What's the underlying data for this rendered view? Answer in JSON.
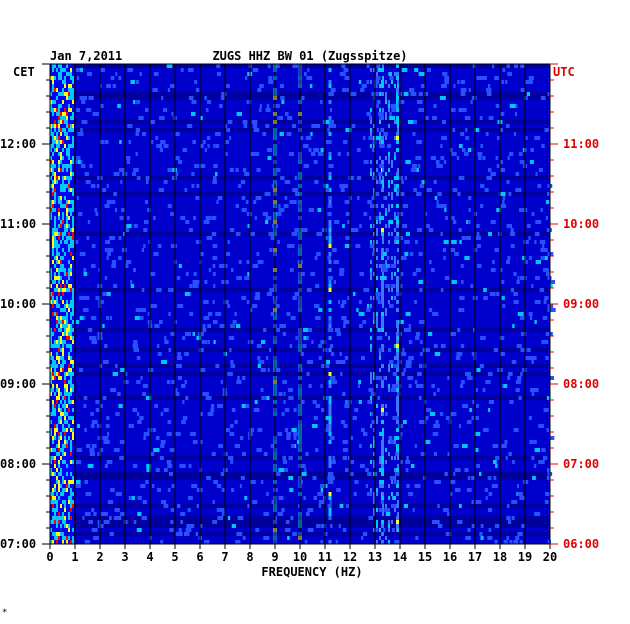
{
  "chart_data": {
    "type": "heatmap",
    "date": "Jan 7,2011",
    "title": "ZUGS HHZ BW 01 (Zugsspitze)",
    "xlabel": "FREQUENCY (HZ)",
    "x_range": [
      0,
      20
    ],
    "x_ticks": [
      "0",
      "1",
      "2",
      "3",
      "4",
      "5",
      "6",
      "7",
      "8",
      "9",
      "10",
      "11",
      "12",
      "13",
      "14",
      "15",
      "16",
      "17",
      "18",
      "19",
      "20"
    ],
    "left_axis_label": "CET",
    "right_axis_label": "UTC",
    "left_ticks": [
      "07:00",
      "08:00",
      "09:00",
      "10:00",
      "11:00",
      "12:00"
    ],
    "right_ticks": [
      "06:00",
      "07:00",
      "08:00",
      "09:00",
      "10:00",
      "11:00"
    ],
    "time_range_cet": [
      "07:00",
      "13:00"
    ],
    "colormap": [
      "#00008b",
      "#0000ff",
      "#00c8ff",
      "#ffff00",
      "#ff0000"
    ],
    "features": [
      {
        "freq": 0.4,
        "intensity": "high",
        "note": "broadband low-frequency energy, continuous"
      },
      {
        "freq": 9.0,
        "intensity": "medium",
        "note": "harmonic line"
      },
      {
        "freq": 10.0,
        "intensity": "medium",
        "note": "harmonic line"
      },
      {
        "freq": 11.2,
        "intensity": "medium",
        "note": "harmonic line"
      },
      {
        "freq": 13.3,
        "intensity": "medium",
        "note": "band 12.8-13.9 Hz"
      },
      {
        "freq": 13.9,
        "intensity": "medium",
        "note": "harmonic line"
      }
    ]
  },
  "colors": {
    "background": "#0000cd",
    "grid": "#000000",
    "left_text": "#000000",
    "right_text": "#e00000"
  },
  "footer_mark": "*"
}
